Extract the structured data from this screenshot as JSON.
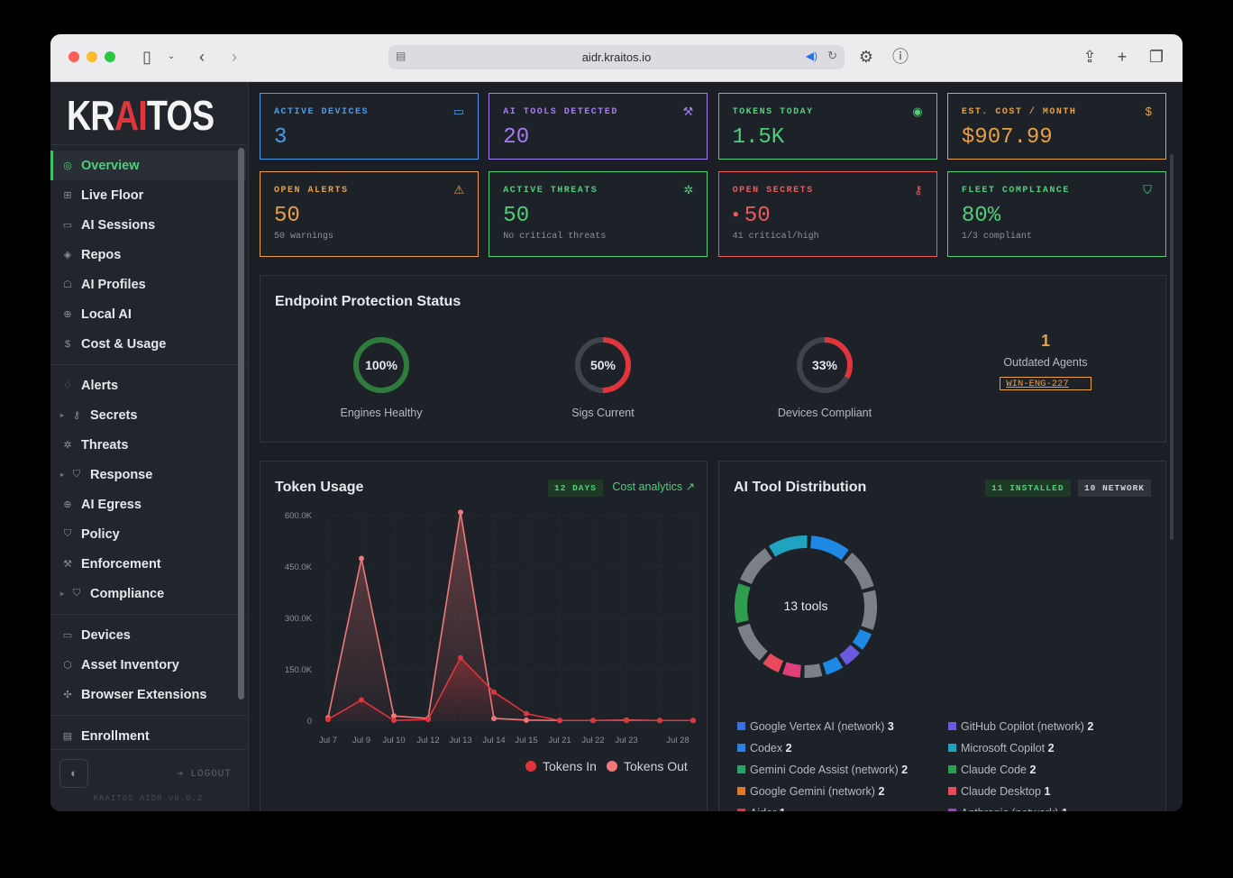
{
  "browser": {
    "url": "aidr.kraitos.io"
  },
  "brand": {
    "pre": "KR",
    "mid": "AI",
    "post": "TOS",
    "accent": "#e0353b"
  },
  "sidebar": {
    "items": [
      {
        "label": "Overview",
        "icon": "gauge-icon",
        "glyph": "◎",
        "active": true
      },
      {
        "label": "Live Floor",
        "icon": "grid-icon",
        "glyph": "⊞"
      },
      {
        "label": "AI Sessions",
        "icon": "chat-icon",
        "glyph": "▭"
      },
      {
        "label": "Repos",
        "icon": "git-icon",
        "glyph": "◈"
      },
      {
        "label": "AI Profiles",
        "icon": "robot-icon",
        "glyph": "☖"
      },
      {
        "label": "Local AI",
        "icon": "globe-icon",
        "glyph": "⊕"
      },
      {
        "label": "Cost & Usage",
        "icon": "dollar-icon",
        "glyph": "$"
      }
    ],
    "items2": [
      {
        "label": "Alerts",
        "icon": "bell-icon",
        "glyph": "♢"
      },
      {
        "label": "Secrets",
        "icon": "key-icon",
        "glyph": "⚷",
        "caret": true
      },
      {
        "label": "Threats",
        "icon": "bug-icon",
        "glyph": "✲"
      },
      {
        "label": "Response",
        "icon": "shield-icon",
        "glyph": "⛉",
        "caret": true
      },
      {
        "label": "AI Egress",
        "icon": "globe-icon",
        "glyph": "⊕"
      },
      {
        "label": "Policy",
        "icon": "shield-icon",
        "glyph": "⛉"
      },
      {
        "label": "Enforcement",
        "icon": "gavel-icon",
        "glyph": "⚒"
      },
      {
        "label": "Compliance",
        "icon": "shield-check-icon",
        "glyph": "⛉",
        "caret": true
      }
    ],
    "items3": [
      {
        "label": "Devices",
        "icon": "monitor-icon",
        "glyph": "▭"
      },
      {
        "label": "Asset Inventory",
        "icon": "box-icon",
        "glyph": "⬡"
      },
      {
        "label": "Browser Extensions",
        "icon": "puzzle-icon",
        "glyph": "✣"
      }
    ],
    "items4": [
      {
        "label": "Enrollment",
        "icon": "enroll-icon",
        "glyph": "▤"
      }
    ],
    "logout": "LOGOUT",
    "version": "KRAITOS AIDR v0.0.2"
  },
  "stats": [
    {
      "label": "ACTIVE DEVICES",
      "value": "3",
      "color": "#4a9bea",
      "icon": "monitor-icon",
      "glyph": "▭"
    },
    {
      "label": "AI TOOLS DETECTED",
      "value": "20",
      "color": "#a77bf3",
      "icon": "wrench-icon",
      "glyph": "⚒"
    },
    {
      "label": "TOKENS TODAY",
      "value": "1.5K",
      "color": "#4ed07a",
      "icon": "coins-icon",
      "glyph": "◉"
    },
    {
      "label": "EST. COST / MONTH",
      "value": "$907.99",
      "color": "#e8a043",
      "icon": "dollar-icon",
      "glyph": "$"
    },
    {
      "label": "OPEN ALERTS",
      "value": "50",
      "sub": "50 warnings",
      "color": "#e8a043",
      "icon": "warning-icon",
      "glyph": "⚠"
    },
    {
      "label": "ACTIVE THREATS",
      "value": "50",
      "sub": "No critical threats",
      "color": "#4ed07a",
      "icon": "bug-icon",
      "glyph": "✲"
    },
    {
      "label": "OPEN SECRETS",
      "value": "50",
      "sub": "41 critical/high",
      "color": "#f05a5a",
      "icon": "key-icon",
      "glyph": "⚷"
    },
    {
      "label": "FLEET COMPLIANCE",
      "value": "80%",
      "sub": "1/3 compliant",
      "color": "#4ed07a",
      "icon": "shield-icon",
      "glyph": "⛉"
    }
  ],
  "endpoint": {
    "title": "Endpoint Protection Status",
    "gauges": [
      {
        "pct": "100%",
        "fraction": 1.0,
        "label": "Engines Healthy",
        "color": "#2f7a3d",
        "track": "#1f4a28"
      },
      {
        "pct": "50%",
        "fraction": 0.5,
        "label": "Sigs Current",
        "color": "#e0353b",
        "track": "#3f434b"
      },
      {
        "pct": "33%",
        "fraction": 0.33,
        "label": "Devices Compliant",
        "color": "#e0353b",
        "track": "#3f434b"
      }
    ],
    "outdated": {
      "count": "1",
      "label": "Outdated Agents",
      "device": "WIN-ENG-227"
    }
  },
  "token_usage": {
    "title": "Token Usage",
    "badge": "12 DAYS",
    "link": "Cost analytics ↗"
  },
  "chart_data": {
    "type": "line",
    "x": [
      "Jul 7",
      "Jul 9",
      "Jul 10",
      "Jul 12",
      "Jul 13",
      "Jul 14",
      "Jul 15",
      "Jul 21",
      "Jul 22",
      "Jul 23",
      "Jul 26",
      "Jul 28"
    ],
    "x_tick_labels": [
      "Jul 7",
      "Jul 9",
      "Jul 10",
      "Jul 12",
      "Jul 13",
      "Jul 14",
      "Jul 15",
      "Jul 21",
      "Jul 22",
      "Jul 23",
      "Jul 28"
    ],
    "y_ticks": [
      "0",
      "150.0K",
      "300.0K",
      "450.0K",
      "600.0K"
    ],
    "ylim": [
      0,
      600000
    ],
    "series": [
      {
        "name": "Tokens In",
        "color": "#e0353b",
        "values": [
          5000,
          62000,
          2000,
          5000,
          185000,
          85000,
          22000,
          2000,
          2000,
          2000,
          2000,
          2000
        ]
      },
      {
        "name": "Tokens Out",
        "color": "#f07878",
        "values": [
          10000,
          475000,
          15000,
          8000,
          610000,
          8000,
          3000,
          2000,
          2000,
          3000,
          2000,
          2000
        ]
      }
    ],
    "legend": "bottom"
  },
  "ai_tools": {
    "title": "AI Tool Distribution",
    "badges": [
      "11 INSTALLED",
      "10 NETWORK"
    ],
    "center": "13 tools",
    "segments": [
      {
        "color": "#1e88e5",
        "v": 2
      },
      {
        "color": "#7a7f88",
        "v": 2
      },
      {
        "color": "#7a7f88",
        "v": 2
      },
      {
        "color": "#1e88e5",
        "v": 1
      },
      {
        "color": "#6a5ae0",
        "v": 1
      },
      {
        "color": "#1e88e5",
        "v": 1
      },
      {
        "color": "#7a7f88",
        "v": 1
      },
      {
        "color": "#e0407a",
        "v": 1
      },
      {
        "color": "#e84a5a",
        "v": 1
      },
      {
        "color": "#7a7f88",
        "v": 2
      },
      {
        "color": "#2e9e4e",
        "v": 2
      },
      {
        "color": "#7a7f88",
        "v": 2
      },
      {
        "color": "#1fa3c0",
        "v": 2
      }
    ],
    "legend": [
      {
        "name": "Google Vertex AI (network)",
        "count": "3",
        "color": "#3b6fe0"
      },
      {
        "name": "GitHub Copilot (network)",
        "count": "2",
        "color": "#6a5ae0"
      },
      {
        "name": "Codex",
        "count": "2",
        "color": "#2a82e0"
      },
      {
        "name": "Microsoft Copilot",
        "count": "2",
        "color": "#1fa3c0"
      },
      {
        "name": "Gemini Code Assist (network)",
        "count": "2",
        "color": "#2aa36a"
      },
      {
        "name": "Claude Code",
        "count": "2",
        "color": "#2e9e4e"
      },
      {
        "name": "Google Gemini (network)",
        "count": "2",
        "color": "#e07a2a"
      },
      {
        "name": "Claude Desktop",
        "count": "1",
        "color": "#e84a5a"
      },
      {
        "name": "Aider",
        "count": "1",
        "color": "#e0353b"
      },
      {
        "name": "Anthropic (network)",
        "count": "1",
        "color": "#a040c0"
      }
    ]
  }
}
